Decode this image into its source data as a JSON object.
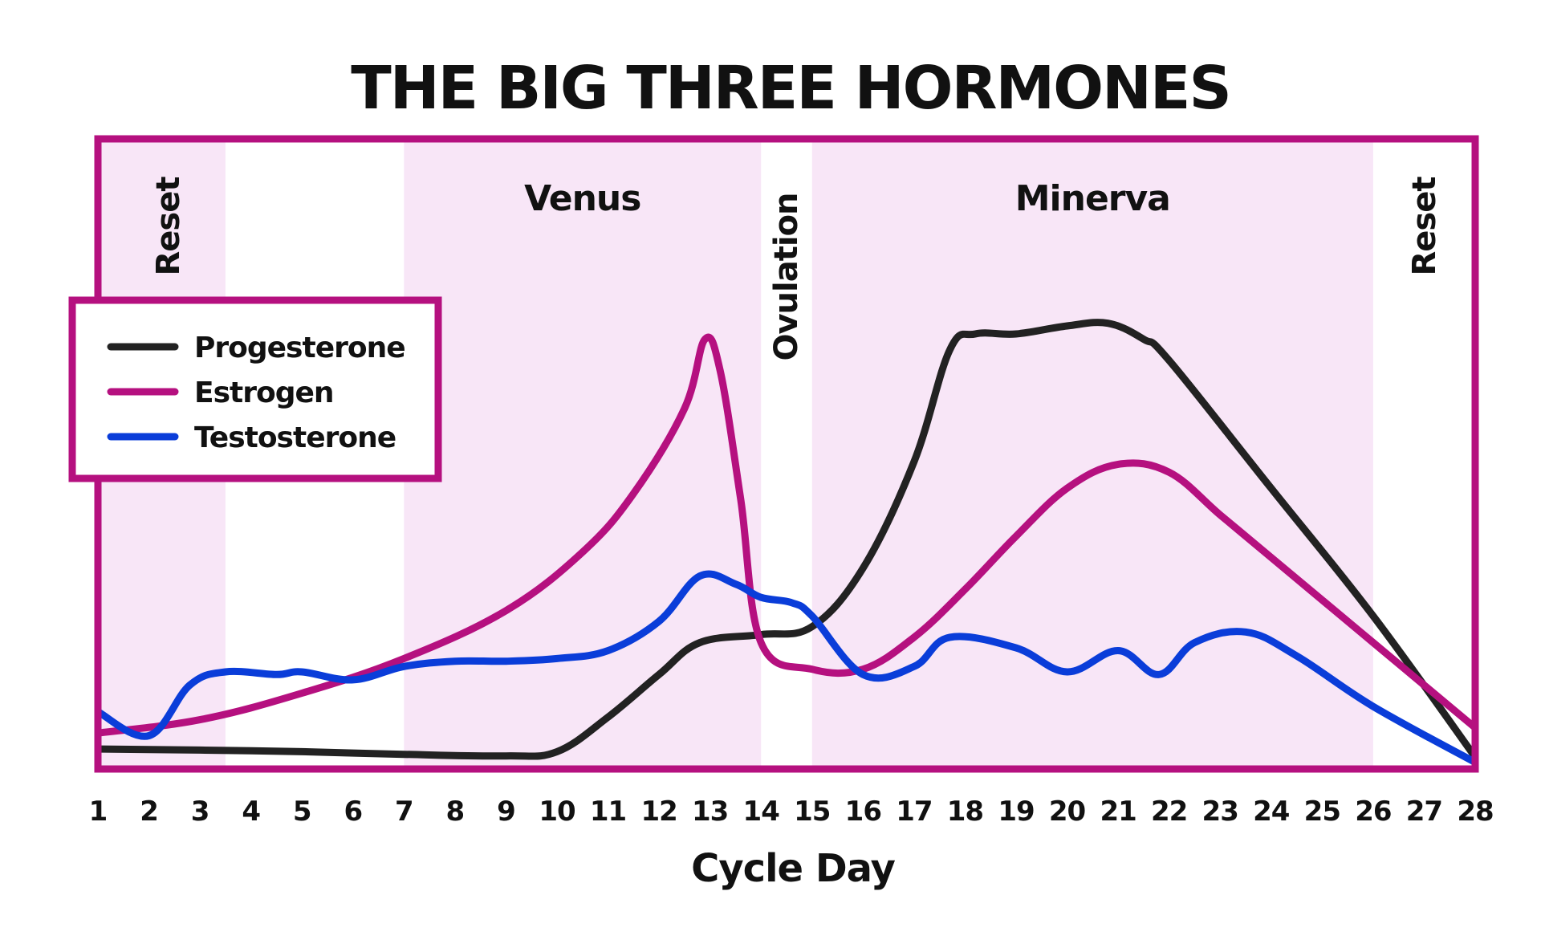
{
  "chart_data": {
    "type": "line",
    "title": "THE BIG THREE HORMONES",
    "xlabel": "Cycle Day",
    "ylabel": "",
    "x_ticks": [
      1,
      2,
      3,
      4,
      5,
      6,
      7,
      8,
      9,
      10,
      11,
      12,
      13,
      14,
      15,
      16,
      17,
      18,
      19,
      20,
      21,
      22,
      23,
      24,
      25,
      26,
      27,
      28
    ],
    "xlim": [
      1,
      28
    ],
    "ylim": [
      0,
      100
    ],
    "grid": false,
    "legend_position": "left",
    "phases": [
      {
        "label": "Reset",
        "start": 1,
        "end": 3.5,
        "shaded": true,
        "orientation": "vertical"
      },
      {
        "label": "Venus",
        "start": 7,
        "end": 14,
        "shaded": true,
        "orientation": "horizontal"
      },
      {
        "label": "Ovulation",
        "start": 14,
        "end": 15,
        "shaded": false,
        "orientation": "vertical"
      },
      {
        "label": "Minerva",
        "start": 15,
        "end": 26,
        "shaded": true,
        "orientation": "horizontal"
      },
      {
        "label": "Reset",
        "start": 26,
        "end": 28,
        "shaded": false,
        "orientation": "vertical"
      }
    ],
    "series": [
      {
        "name": "Progesterone",
        "color": "#222222",
        "points": [
          [
            1,
            3
          ],
          [
            3,
            2.8
          ],
          [
            5,
            2.5
          ],
          [
            7,
            2
          ],
          [
            9,
            1.7
          ],
          [
            10,
            2.5
          ],
          [
            11,
            9
          ],
          [
            12,
            17
          ],
          [
            12.8,
            23
          ],
          [
            14,
            24.5
          ],
          [
            15,
            26
          ],
          [
            16,
            37
          ],
          [
            17,
            57
          ],
          [
            17.7,
            78
          ],
          [
            18.2,
            81
          ],
          [
            19,
            81
          ],
          [
            20,
            82.5
          ],
          [
            20.8,
            83
          ],
          [
            21.5,
            80
          ],
          [
            22,
            76
          ],
          [
            24,
            52
          ],
          [
            26,
            28
          ],
          [
            28,
            1.5
          ]
        ]
      },
      {
        "name": "Estrogen",
        "color": "#B5107F",
        "points": [
          [
            1,
            6
          ],
          [
            3,
            8.5
          ],
          [
            5,
            13.5
          ],
          [
            7,
            20
          ],
          [
            9,
            29
          ],
          [
            10.5,
            40
          ],
          [
            11.5,
            51
          ],
          [
            12.5,
            67
          ],
          [
            12.9,
            80
          ],
          [
            13.2,
            74
          ],
          [
            13.6,
            50
          ],
          [
            14,
            23
          ],
          [
            15,
            18
          ],
          [
            16,
            18
          ],
          [
            17,
            24
          ],
          [
            18,
            33
          ],
          [
            19,
            43
          ],
          [
            20,
            52
          ],
          [
            21,
            56.5
          ],
          [
            22,
            55
          ],
          [
            23,
            47
          ],
          [
            24,
            39
          ],
          [
            26,
            23
          ],
          [
            28,
            7
          ]
        ]
      },
      {
        "name": "Testosterone",
        "color": "#0A3DD9",
        "points": [
          [
            1,
            10
          ],
          [
            2,
            5.5
          ],
          [
            2.8,
            15
          ],
          [
            3.5,
            17.5
          ],
          [
            4.5,
            17
          ],
          [
            5,
            17.5
          ],
          [
            6,
            16
          ],
          [
            7,
            18.5
          ],
          [
            8,
            19.5
          ],
          [
            9,
            19.5
          ],
          [
            10,
            20
          ],
          [
            11,
            21.5
          ],
          [
            12,
            27
          ],
          [
            12.8,
            35.5
          ],
          [
            13.5,
            34
          ],
          [
            14,
            31.5
          ],
          [
            14.6,
            30.5
          ],
          [
            15,
            28
          ],
          [
            16,
            17
          ],
          [
            17,
            18.5
          ],
          [
            17.7,
            24
          ],
          [
            19,
            22
          ],
          [
            20,
            17.5
          ],
          [
            21,
            21.5
          ],
          [
            21.8,
            17
          ],
          [
            22.5,
            23
          ],
          [
            23.5,
            25
          ],
          [
            24.5,
            20.5
          ],
          [
            26,
            11
          ],
          [
            28,
            0.5
          ]
        ]
      }
    ]
  }
}
